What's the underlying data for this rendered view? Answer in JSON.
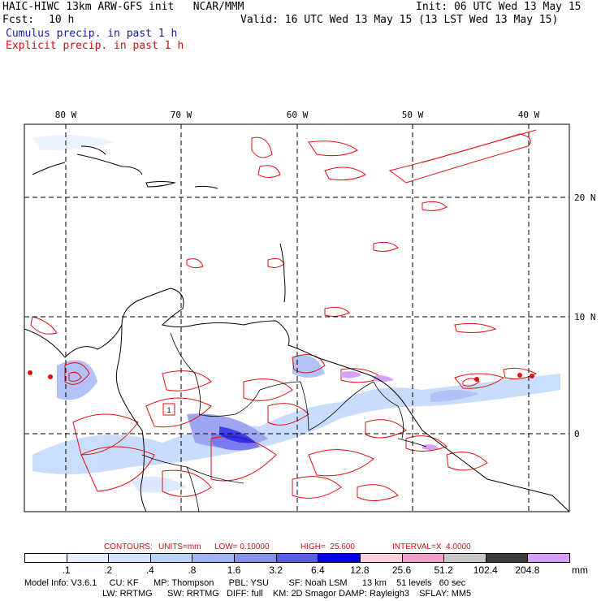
{
  "header": {
    "title": "HAIC-HIWC 13km ARW-GFS init   NCAR/MMM",
    "init": "Init: 06 UTC Wed 13 May 15",
    "fcst_label": "Fcst:",
    "fcst_value": "10 h",
    "valid": "Valid: 16 UTC Wed 13 May 15 (13 LST Wed 13 May 15)",
    "cumulus": "Cumulus precip. in past 1 h",
    "explicit": "Explicit precip. in past 1 h"
  },
  "map": {
    "lon_labels": [
      "80 W",
      "70 W",
      "60 W",
      "50 W",
      "40 W"
    ],
    "lat_labels": [
      "20 N",
      "10 N",
      "0"
    ],
    "box_label": "1"
  },
  "contours": {
    "label": "CONTOURS:",
    "units": "UNITS=mm",
    "low": "LOW= 0.10000",
    "high": "HIGH=  25.600",
    "interval": "INTERVAL=X  4.0000"
  },
  "colorbar": {
    "labels": [
      ".1",
      ".2",
      ".4",
      ".8",
      "1.6",
      "3.2",
      "6.4",
      "12.8",
      "25.6",
      "51.2",
      "102.4",
      "204.8"
    ],
    "unit": "mm",
    "colors": [
      "#ffffff",
      "#e8f0ff",
      "#d4e4ff",
      "#bcd4fb",
      "#a0b4f4",
      "#8890ee",
      "#5a5aee",
      "#0000e6",
      "#fdd0dc",
      "#f0a0c8",
      "#c8c8c8",
      "#3c3c3c",
      "#d6a0f6"
    ]
  },
  "footer": {
    "line1": "Model Info: V3.6.1     CU: KF      MP: Thompson      PBL: YSU        SF: Noah LSM      13 km    51 levels   60 sec",
    "line2": "LW: RRTMG      SW: RRTMG   DIFF: full    KM: 2D Smagor DAMP: Rayleigh3    SFLAY: MM5"
  }
}
